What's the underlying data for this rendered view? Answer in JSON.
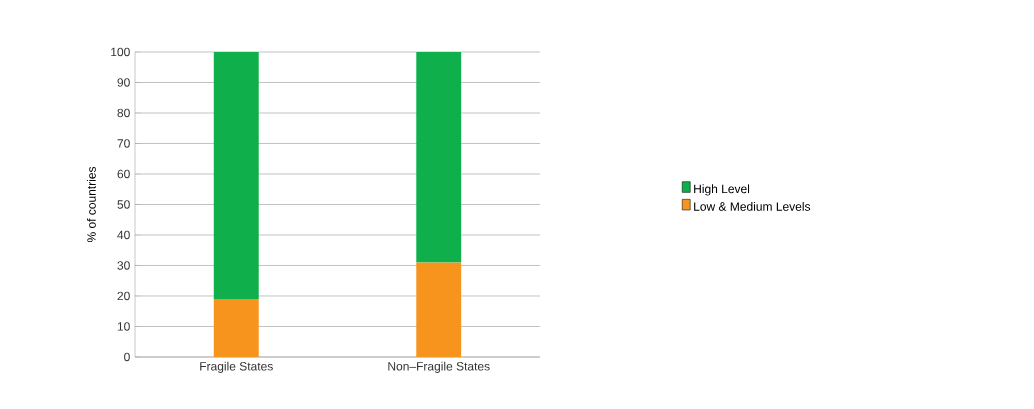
{
  "chart_data": {
    "type": "bar",
    "stacked": true,
    "ylabel": "% of countries",
    "categories": [
      "Fragile States",
      "Non–Fragile States"
    ],
    "series": [
      {
        "name": "Low & Medium Levels",
        "color": "#f7941d",
        "values": [
          19,
          31
        ]
      },
      {
        "name": "High Level",
        "color": "#0fb04b",
        "values": [
          81,
          69
        ]
      }
    ],
    "ylim": [
      0,
      100
    ],
    "yticks": [
      0,
      10,
      20,
      30,
      40,
      50,
      60,
      70,
      80,
      90,
      100
    ],
    "grid": "y",
    "legend": "right"
  }
}
